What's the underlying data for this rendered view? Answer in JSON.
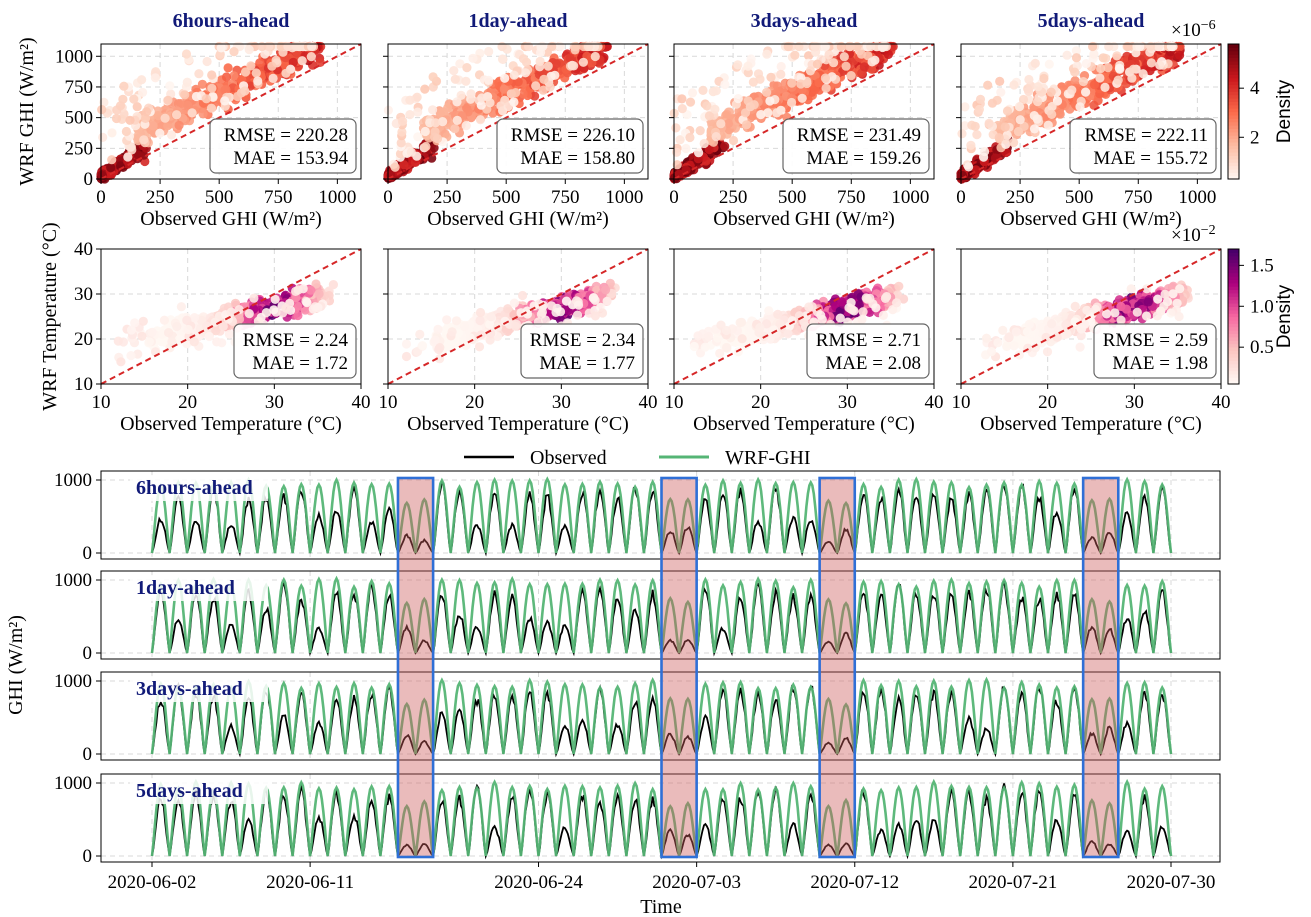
{
  "chart_data": [
    {
      "type": "scatter",
      "panel_grid": "row-1",
      "colormap": "Reds",
      "panel_titles": [
        "6hours-ahead",
        "1day-ahead",
        "3days-ahead",
        "5days-ahead"
      ],
      "xlabel": "Observed GHI (W/m²)",
      "ylabel": "WRF GHI (W/m²)",
      "xlim": [
        0,
        1100
      ],
      "ylim": [
        0,
        1100
      ],
      "xticks": [
        "0",
        "250",
        "500",
        "750",
        "1000"
      ],
      "yticks": [
        "0",
        "250",
        "500",
        "750",
        "1000"
      ],
      "metrics": [
        {
          "rmse": "RMSE = 220.28",
          "mae": "MAE = 153.94"
        },
        {
          "rmse": "RMSE = 226.10",
          "mae": "MAE = 158.80"
        },
        {
          "rmse": "RMSE = 231.49",
          "mae": "MAE = 159.26"
        },
        {
          "rmse": "RMSE = 222.11",
          "mae": "MAE = 155.72"
        }
      ],
      "reference_line": "y = x",
      "colorbar": {
        "label": "Density",
        "ticks": [
          "2",
          "4"
        ],
        "exponent_base": "×10",
        "exponent_power": "−6",
        "range": [
          0.3,
          5.8
        ],
        "colors": [
          "#fff5f0",
          "#fcbba1",
          "#fb6a4a",
          "#cb181d",
          "#67000d"
        ]
      }
    },
    {
      "type": "scatter",
      "panel_grid": "row-2",
      "colormap": "RdPu",
      "xlabel": "Observed Temperature (°C)",
      "ylabel": "WRF Temperature (°C)",
      "xlim": [
        10,
        40
      ],
      "ylim": [
        10,
        40
      ],
      "xticks": [
        "10",
        "20",
        "30",
        "40"
      ],
      "yticks": [
        "10",
        "20",
        "30",
        "40"
      ],
      "metrics": [
        {
          "rmse": "RMSE = 2.24",
          "mae": "MAE = 1.72"
        },
        {
          "rmse": "RMSE = 2.34",
          "mae": "MAE = 1.77"
        },
        {
          "rmse": "RMSE = 2.71",
          "mae": "MAE = 2.08"
        },
        {
          "rmse": "RMSE = 2.59",
          "mae": "MAE = 1.98"
        }
      ],
      "reference_line": "y = x",
      "colorbar": {
        "label": "Density",
        "ticks": [
          "0.5",
          "1.0",
          "1.5"
        ],
        "exponent_base": "×10",
        "exponent_power": "−2",
        "range": [
          0.05,
          1.7
        ],
        "colors": [
          "#fff7f3",
          "#fcc5c0",
          "#f768a1",
          "#ae017e",
          "#49006a"
        ]
      }
    },
    {
      "type": "line",
      "panel_titles": [
        "6hours-ahead",
        "1day-ahead",
        "3days-ahead",
        "5days-ahead"
      ],
      "xlabel": "Time",
      "ylabel": "GHI (W/m²)",
      "xlim": [
        "2020-06-02",
        "2020-07-30"
      ],
      "ylim": [
        0,
        1050
      ],
      "yticks": [
        "0",
        "1000"
      ],
      "xticks": [
        "2020-06-02",
        "2020-06-11",
        "2020-06-24",
        "2020-07-03",
        "2020-07-12",
        "2020-07-21",
        "2020-07-30"
      ],
      "legend": {
        "position": "top-center",
        "entries": [
          "Observed",
          "WRF-GHI"
        ]
      },
      "series": [
        {
          "name": "Observed",
          "color": "#000000",
          "pattern": "daily GHI cycle, clear-sky peaks ≈ 900–1000, cloudy days lower"
        },
        {
          "name": "WRF-GHI",
          "color": "#55b575",
          "pattern": "daily GHI cycle, peaks ≈ 1000"
        }
      ],
      "highlight_windows": [
        [
          "2020-06-16",
          "2020-06-18"
        ],
        [
          "2020-07-01",
          "2020-07-03"
        ],
        [
          "2020-07-10",
          "2020-07-12"
        ],
        [
          "2020-07-25",
          "2020-07-27"
        ]
      ],
      "highlight_colors": {
        "fill": "#cd5c5c",
        "border": "#2f6fd6"
      }
    }
  ]
}
